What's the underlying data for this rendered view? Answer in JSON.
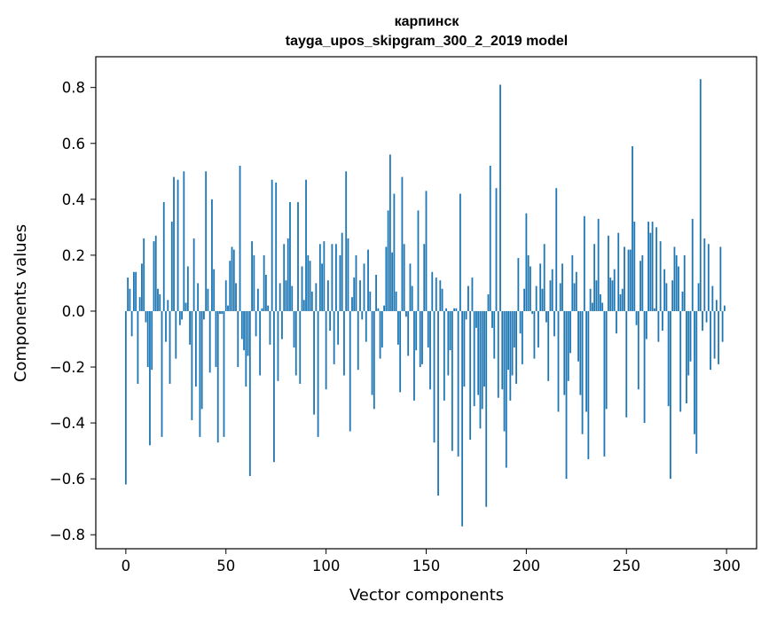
{
  "chart_data": {
    "type": "bar",
    "title": "карпинск",
    "subtitle": "tayga_upos_skipgram_300_2_2019 model",
    "xlabel": "Vector components",
    "ylabel": "Components values",
    "xlim": [
      -15,
      315
    ],
    "ylim": [
      -0.85,
      0.91
    ],
    "xticks": [
      0,
      50,
      100,
      150,
      200,
      250,
      300
    ],
    "xtick_labels": [
      "0",
      "50",
      "100",
      "150",
      "200",
      "250",
      "300"
    ],
    "yticks": [
      -0.8,
      -0.6,
      -0.4,
      -0.2,
      0.0,
      0.2,
      0.4,
      0.6,
      0.8
    ],
    "ytick_labels": [
      "−0.8",
      "−0.6",
      "−0.4",
      "−0.2",
      "0.0",
      "0.2",
      "0.4",
      "0.6",
      "0.8"
    ],
    "color": "#1f77b4",
    "values": [
      -0.62,
      0.12,
      0.08,
      -0.09,
      0.14,
      0.14,
      -0.26,
      0.05,
      0.17,
      0.26,
      -0.04,
      -0.2,
      -0.48,
      -0.21,
      0.25,
      0.27,
      0.08,
      0.06,
      -0.45,
      0.39,
      -0.11,
      0.04,
      -0.26,
      0.32,
      0.48,
      -0.17,
      0.47,
      -0.05,
      -0.03,
      0.5,
      0.03,
      0.16,
      -0.12,
      -0.39,
      0.26,
      -0.27,
      0.1,
      -0.45,
      -0.35,
      -0.03,
      0.5,
      0.08,
      -0.22,
      0.4,
      0.15,
      -0.2,
      -0.47,
      -0.01,
      -0.01,
      -0.45,
      0.11,
      0.02,
      0.18,
      0.23,
      0.22,
      0.1,
      -0.2,
      0.52,
      -0.1,
      -0.14,
      -0.27,
      -0.16,
      -0.59,
      0.25,
      0.2,
      -0.09,
      0.08,
      -0.23,
      0.01,
      0.2,
      0.13,
      0.02,
      -0.12,
      0.47,
      -0.54,
      0.46,
      -0.25,
      0.1,
      -0.1,
      0.24,
      0.11,
      0.26,
      0.39,
      0.09,
      -0.13,
      -0.23,
      0.39,
      -0.26,
      0.16,
      0.04,
      0.47,
      0.2,
      0.18,
      0.07,
      -0.37,
      0.1,
      -0.45,
      0.24,
      0.17,
      0.25,
      -0.28,
      0.11,
      -0.07,
      0.24,
      -0.19,
      0.24,
      -0.12,
      0.2,
      0.28,
      -0.23,
      0.5,
      0.26,
      -0.43,
      0.05,
      0.12,
      0.2,
      -0.21,
      0.11,
      -0.03,
      0.17,
      -0.11,
      0.22,
      0.07,
      -0.3,
      -0.35,
      0.13,
      0.01,
      -0.17,
      -0.13,
      0.02,
      0.23,
      0.36,
      0.56,
      0.21,
      0.42,
      0.07,
      -0.12,
      -0.29,
      0.48,
      0.24,
      -0.02,
      -0.16,
      0.17,
      0.09,
      -0.32,
      -0.14,
      0.36,
      -0.2,
      -0.19,
      0.24,
      0.43,
      -0.13,
      -0.28,
      0.14,
      -0.47,
      0.12,
      -0.66,
      0.11,
      0.08,
      -0.32,
      0.01,
      -0.23,
      -0.14,
      -0.5,
      0.01,
      0.01,
      -0.52,
      0.42,
      -0.77,
      -0.27,
      -0.03,
      0.09,
      -0.46,
      0.12,
      -0.34,
      -0.06,
      -0.3,
      -0.42,
      -0.35,
      -0.27,
      -0.7,
      0.06,
      0.52,
      -0.06,
      -0.17,
      0.44,
      -0.31,
      0.81,
      -0.28,
      -0.43,
      -0.56,
      -0.21,
      -0.32,
      -0.23,
      -0.13,
      -0.26,
      0.19,
      -0.08,
      -0.19,
      0.08,
      0.35,
      0.2,
      0.16,
      -0.01,
      -0.17,
      0.09,
      -0.13,
      0.17,
      0.08,
      0.24,
      -0.04,
      -0.25,
      0.11,
      0.15,
      -0.09,
      0.44,
      -0.36,
      0.1,
      0.17,
      -0.3,
      -0.6,
      -0.25,
      -0.15,
      0.2,
      0.1,
      0.14,
      -0.18,
      -0.3,
      -0.44,
      0.34,
      -0.36,
      -0.53,
      0.08,
      0.03,
      0.24,
      0.11,
      0.33,
      0.06,
      0.03,
      -0.52,
      -0.35,
      0.27,
      0.12,
      0.11,
      0.15,
      -0.08,
      0.28,
      0.06,
      0.08,
      0.23,
      -0.38,
      0.22,
      0.22,
      0.59,
      0.32,
      -0.05,
      -0.28,
      0.18,
      0.2,
      -0.4,
      -0.1,
      0.32,
      0.28,
      0.32,
      0.01,
      0.3,
      -0.11,
      0.25,
      -0.07,
      0.15,
      0.1,
      -0.34,
      -0.6,
      0.11,
      0.23,
      0.2,
      0.16,
      -0.36,
      0.07,
      0.2,
      -0.33,
      -0.23,
      -0.18,
      0.33,
      -0.44,
      -0.51,
      0.1,
      0.83,
      -0.07,
      0.26,
      -0.04,
      0.24,
      -0.21,
      0.09,
      -0.17,
      0.04,
      -0.19,
      0.23,
      -0.11,
      0.02
    ]
  }
}
